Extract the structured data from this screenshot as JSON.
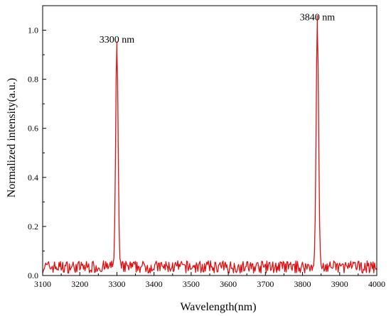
{
  "chart_data": {
    "type": "line",
    "title": "",
    "xlabel": "Wavelength(nm)",
    "ylabel": "Normalized intensity(a.u.)",
    "xlim": [
      3100,
      4000
    ],
    "ylim": [
      0.0,
      1.1
    ],
    "x_ticks": [
      3100,
      3200,
      3300,
      3400,
      3500,
      3600,
      3700,
      3800,
      3900,
      4000
    ],
    "x_tick_labels": [
      "3100",
      "3200",
      "3300",
      "3400",
      "3500",
      "3600",
      "3700",
      "3800",
      "3900",
      "4000"
    ],
    "y_ticks": [
      0.0,
      0.2,
      0.4,
      0.6,
      0.8,
      1.0
    ],
    "y_tick_labels": [
      "0.0",
      "0.2",
      "0.4",
      "0.6",
      "0.8",
      "1.0"
    ],
    "grid": false,
    "color": "#e01010",
    "series": [
      {
        "peaks": [
          {
            "center": 3300,
            "height": 0.91
          },
          {
            "center": 3840,
            "height": 1.0
          }
        ],
        "baseline_range": [
          0.01,
          0.06
        ]
      }
    ],
    "annotations": [
      {
        "text": "3300 nm",
        "x": 3300,
        "y": 0.95
      },
      {
        "text": "3840 nm",
        "x": 3840,
        "y": 1.04
      }
    ]
  }
}
